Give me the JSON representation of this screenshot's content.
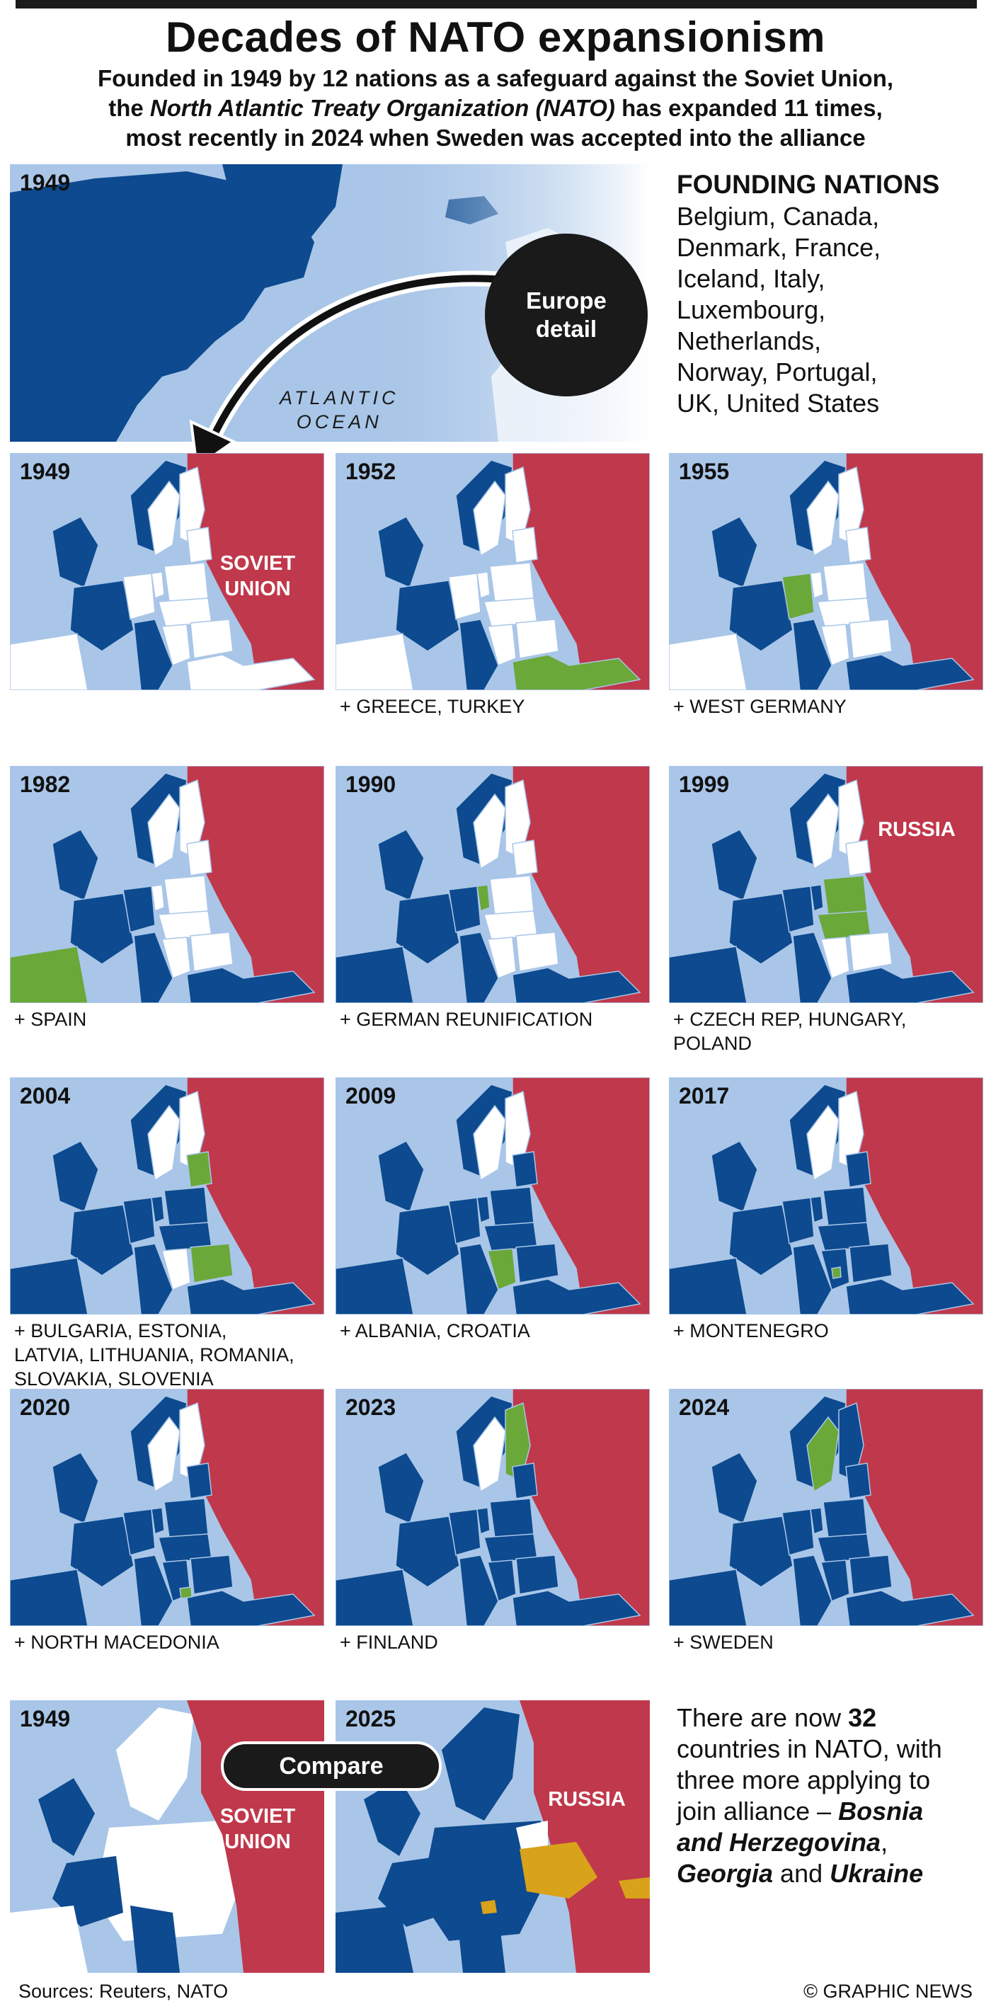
{
  "title": "Decades of NATO expansionism",
  "intro": {
    "line1": "Founded in 1949 by 12 nations as a safeguard against the Soviet Union,",
    "line2_pre": "the ",
    "line2_italic": "North Atlantic Treaty Organization (NATO)",
    "line2_post": " has expanded 11 times,",
    "line3": "most recently in 2024 when Sweden was accepted into the alliance"
  },
  "overview": {
    "year": "1949",
    "bubble_line1": "Europe",
    "bubble_line2": "detail",
    "ocean_line1": "ATLANTIC",
    "ocean_line2": "OCEAN"
  },
  "founding": {
    "heading": "FOUNDING NATIONS",
    "lines": [
      "Belgium, Canada,",
      "Denmark, France,",
      "Iceland, Italy,",
      "Luxembourg,",
      "Netherlands,",
      "Norway, Portugal,",
      "UK, United States"
    ]
  },
  "panels": [
    {
      "year": "1949",
      "caption1": "",
      "caption2": "",
      "caption3": "",
      "label1": "SOVIET",
      "label2": "UNION"
    },
    {
      "year": "1952",
      "caption1": "+ GREECE, TURKEY",
      "caption2": "",
      "caption3": "",
      "label1": "",
      "label2": ""
    },
    {
      "year": "1955",
      "caption1": "+ WEST GERMANY",
      "caption2": "",
      "caption3": "",
      "label1": "",
      "label2": ""
    },
    {
      "year": "1982",
      "caption1": "+ SPAIN",
      "caption2": "",
      "caption3": "",
      "label1": "",
      "label2": ""
    },
    {
      "year": "1990",
      "caption1": "+ GERMAN REUNIFICATION",
      "caption2": "",
      "caption3": "",
      "label1": "",
      "label2": ""
    },
    {
      "year": "1999",
      "caption1": "+ CZECH REP, HUNGARY,",
      "caption2": "POLAND",
      "caption3": "",
      "label1": "RUSSIA",
      "label2": ""
    },
    {
      "year": "2004",
      "caption1": "+  BULGARIA, ESTONIA,",
      "caption2": "LATVIA, LITHUANIA, ROMANIA,",
      "caption3": "SLOVAKIA, SLOVENIA",
      "label1": "",
      "label2": ""
    },
    {
      "year": "2009",
      "caption1": "+ ALBANIA, CROATIA",
      "caption2": "",
      "caption3": "",
      "label1": "",
      "label2": ""
    },
    {
      "year": "2017",
      "caption1": "+ MONTENEGRO",
      "caption2": "",
      "caption3": "",
      "label1": "",
      "label2": ""
    },
    {
      "year": "2020",
      "caption1": "+ NORTH MACEDONIA",
      "caption2": "",
      "caption3": "",
      "label1": "",
      "label2": ""
    },
    {
      "year": "2023",
      "caption1": "+ FINLAND",
      "caption2": "",
      "caption3": "",
      "label1": "",
      "label2": ""
    },
    {
      "year": "2024",
      "caption1": "+ SWEDEN",
      "caption2": "",
      "caption3": "",
      "label1": "",
      "label2": ""
    }
  ],
  "compare": {
    "button": "Compare",
    "left_year": "1949",
    "left_label1": "SOVIET",
    "left_label2": "UNION",
    "right_year": "2025",
    "right_label": "RUSSIA"
  },
  "summary": {
    "pre": "There are now ",
    "count": "32",
    "mid": " countries in NATO, with three more applying to join alliance – ",
    "c1": "Bosnia and Herzegovina",
    "sep1": ", ",
    "c2": "Georgia",
    "sep2": " and ",
    "c3": "Ukraine"
  },
  "footer": {
    "sources": "Sources: Reuters, NATO",
    "credit": "© GRAPHIC NEWS"
  },
  "colors": {
    "sea": "#a9c6e8",
    "nato": "#0d4a8f",
    "new_member": "#6aa83a",
    "russia": "#c0384b",
    "neutral": "#ffffff",
    "applicant": "#d9a21b"
  }
}
